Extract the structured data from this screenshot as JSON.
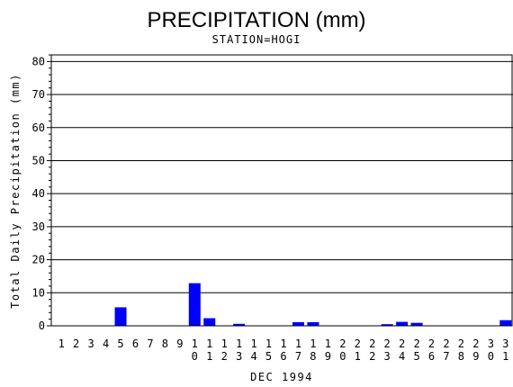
{
  "chart_data": {
    "type": "bar",
    "title": "PRECIPITATION (mm)",
    "subtitle": "STATION=HOGI",
    "xlabel": "DEC 1994",
    "ylabel": "Total Daily Precipitation (mm)",
    "ylim": [
      0,
      82
    ],
    "yticks": [
      0,
      10,
      20,
      30,
      40,
      50,
      60,
      70,
      80
    ],
    "grid": true,
    "bar_color": "#0000ff",
    "categories": [
      "1",
      "2",
      "3",
      "4",
      "5",
      "6",
      "7",
      "8",
      "9",
      "10",
      "11",
      "12",
      "13",
      "14",
      "15",
      "16",
      "17",
      "18",
      "19",
      "20",
      "21",
      "22",
      "23",
      "24",
      "25",
      "26",
      "27",
      "28",
      "29",
      "30",
      "31"
    ],
    "values": [
      0,
      0,
      0,
      0,
      5.6,
      0,
      0,
      0,
      0,
      12.9,
      2.3,
      0,
      0.6,
      0,
      0,
      0,
      1.1,
      1.1,
      0,
      0,
      0,
      0,
      0.5,
      1.2,
      0.9,
      0,
      0,
      0,
      0,
      0,
      1.7
    ]
  }
}
